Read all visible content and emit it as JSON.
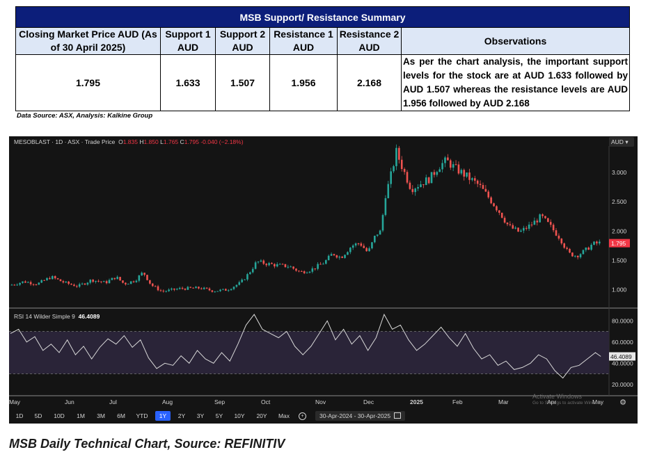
{
  "table": {
    "title": "MSB Support/  Resistance Summary",
    "headers": [
      "Closing Market Price AUD (As of 30 April 2025)",
      "Support 1 AUD",
      "Support 2 AUD",
      "Resistance 1 AUD",
      "Resistance 2 AUD",
      "Observations"
    ],
    "values": [
      "1.795",
      "1.633",
      "1.507",
      "1.956",
      "2.168"
    ],
    "observation": "As per the chart analysis, the important support levels for the stock are at AUD 1.633 followed by AUD 1.507 whereas the resistance levels are AUD 1.956 followed by AUD 2.168",
    "source": "Data Source: ASX, Analysis: Kalkine Group"
  },
  "chart_header": {
    "symbol": "MESOBLAST · 1D · ASX · Trade Price",
    "o_label": "O",
    "o_value": "1.835",
    "h_label": "H",
    "h_value": "1.850",
    "l_label": "L",
    "l_value": "1.765",
    "c_label": "C",
    "c_value": "1.795",
    "change": "-0.040 (−2.18%)",
    "currency_button": "AUD"
  },
  "rsi_header": {
    "label": "RSI 14 Wilder Simple 9",
    "value": "46.4089"
  },
  "watermark": {
    "line1": "Activate Windows",
    "line2": "Go to Settings to activate Windows."
  },
  "range_buttons": [
    "1D",
    "5D",
    "10D",
    "1M",
    "3M",
    "6M",
    "YTD",
    "1Y",
    "2Y",
    "3Y",
    "5Y",
    "10Y",
    "20Y",
    "Max"
  ],
  "active_range": "1Y",
  "date_range": "30-Apr-2024  -  30-Apr-2025",
  "caption": "MSB Daily Technical Chart, Source: REFINITIV",
  "colors": {
    "up": "#26a69a",
    "down": "#ef5350",
    "rsi_line": "#d8d8d8",
    "rsi_band": "#2a2438",
    "last_price_tag": "#f23645",
    "active_button": "#2962ff",
    "table_title_bg": "#0c1e7a",
    "table_header_bg": "#dde7f6"
  },
  "chart_data": [
    {
      "type": "line",
      "title": "MESOBLAST · 1D · ASX · Trade Price",
      "x": [
        "May",
        "Jun",
        "Jul",
        "Aug",
        "Sep",
        "Oct",
        "Nov",
        "Dec",
        "2025",
        "Feb",
        "Mar",
        "Apr",
        "May"
      ],
      "price_points": [
        {
          "d": 0,
          "p": 1.08
        },
        {
          "d": 10,
          "p": 1.14
        },
        {
          "d": 20,
          "p": 1.1
        },
        {
          "d": 30,
          "p": 1.22
        },
        {
          "d": 40,
          "p": 1.12
        },
        {
          "d": 50,
          "p": 1.06
        },
        {
          "d": 60,
          "p": 1.17
        },
        {
          "d": 70,
          "p": 1.12
        },
        {
          "d": 78,
          "p": 1.22
        },
        {
          "d": 84,
          "p": 1.1
        },
        {
          "d": 92,
          "p": 1.16
        },
        {
          "d": 98,
          "p": 1.3
        },
        {
          "d": 104,
          "p": 1.08
        },
        {
          "d": 112,
          "p": 0.97
        },
        {
          "d": 125,
          "p": 1.02
        },
        {
          "d": 140,
          "p": 1.03
        },
        {
          "d": 150,
          "p": 0.98
        },
        {
          "d": 160,
          "p": 1.0
        },
        {
          "d": 170,
          "p": 1.12
        },
        {
          "d": 176,
          "p": 1.28
        },
        {
          "d": 182,
          "p": 1.48
        },
        {
          "d": 188,
          "p": 1.45
        },
        {
          "d": 196,
          "p": 1.42
        },
        {
          "d": 206,
          "p": 1.4
        },
        {
          "d": 214,
          "p": 1.3
        },
        {
          "d": 222,
          "p": 1.34
        },
        {
          "d": 232,
          "p": 1.47
        },
        {
          "d": 238,
          "p": 1.62
        },
        {
          "d": 244,
          "p": 1.55
        },
        {
          "d": 252,
          "p": 1.75
        },
        {
          "d": 258,
          "p": 1.8
        },
        {
          "d": 264,
          "p": 1.63
        },
        {
          "d": 270,
          "p": 1.95
        },
        {
          "d": 274,
          "p": 2.0
        },
        {
          "d": 276,
          "p": 2.55
        },
        {
          "d": 280,
          "p": 2.85
        },
        {
          "d": 285,
          "p": 3.35
        },
        {
          "d": 290,
          "p": 3.05
        },
        {
          "d": 296,
          "p": 2.72
        },
        {
          "d": 302,
          "p": 2.8
        },
        {
          "d": 310,
          "p": 2.9
        },
        {
          "d": 316,
          "p": 3.1
        },
        {
          "d": 322,
          "p": 3.2
        },
        {
          "d": 328,
          "p": 3.08
        },
        {
          "d": 336,
          "p": 2.95
        },
        {
          "d": 346,
          "p": 2.78
        },
        {
          "d": 354,
          "p": 2.55
        },
        {
          "d": 362,
          "p": 2.3
        },
        {
          "d": 368,
          "p": 2.08
        },
        {
          "d": 376,
          "p": 1.98
        },
        {
          "d": 384,
          "p": 2.1
        },
        {
          "d": 392,
          "p": 2.25
        },
        {
          "d": 398,
          "p": 2.1
        },
        {
          "d": 406,
          "p": 1.88
        },
        {
          "d": 412,
          "p": 1.62
        },
        {
          "d": 418,
          "p": 1.58
        },
        {
          "d": 424,
          "p": 1.66
        },
        {
          "d": 430,
          "p": 1.78
        },
        {
          "d": 436,
          "p": 1.8
        }
      ],
      "last_price": 1.795,
      "y_ticks": [
        1.0,
        1.5,
        2.0,
        2.5,
        3.0
      ],
      "y_tick_labels": [
        "1.000",
        "1.500",
        "2.000",
        "2.500",
        "3.000"
      ],
      "ylim": [
        0.7,
        3.45
      ],
      "grid": false
    },
    {
      "type": "line",
      "title": "RSI 14 Wilder Simple 9",
      "rsi_points": [
        {
          "d": 0,
          "v": 68
        },
        {
          "d": 6,
          "v": 72
        },
        {
          "d": 12,
          "v": 60
        },
        {
          "d": 18,
          "v": 65
        },
        {
          "d": 24,
          "v": 52
        },
        {
          "d": 30,
          "v": 58
        },
        {
          "d": 36,
          "v": 50
        },
        {
          "d": 42,
          "v": 62
        },
        {
          "d": 48,
          "v": 48
        },
        {
          "d": 54,
          "v": 56
        },
        {
          "d": 60,
          "v": 44
        },
        {
          "d": 66,
          "v": 55
        },
        {
          "d": 72,
          "v": 63
        },
        {
          "d": 78,
          "v": 58
        },
        {
          "d": 84,
          "v": 66
        },
        {
          "d": 90,
          "v": 55
        },
        {
          "d": 96,
          "v": 62
        },
        {
          "d": 102,
          "v": 45
        },
        {
          "d": 108,
          "v": 35
        },
        {
          "d": 114,
          "v": 40
        },
        {
          "d": 120,
          "v": 38
        },
        {
          "d": 126,
          "v": 47
        },
        {
          "d": 132,
          "v": 40
        },
        {
          "d": 138,
          "v": 52
        },
        {
          "d": 144,
          "v": 44
        },
        {
          "d": 150,
          "v": 40
        },
        {
          "d": 156,
          "v": 50
        },
        {
          "d": 162,
          "v": 42
        },
        {
          "d": 168,
          "v": 58
        },
        {
          "d": 174,
          "v": 76
        },
        {
          "d": 180,
          "v": 86
        },
        {
          "d": 186,
          "v": 72
        },
        {
          "d": 192,
          "v": 68
        },
        {
          "d": 198,
          "v": 64
        },
        {
          "d": 204,
          "v": 70
        },
        {
          "d": 210,
          "v": 56
        },
        {
          "d": 216,
          "v": 48
        },
        {
          "d": 222,
          "v": 56
        },
        {
          "d": 228,
          "v": 68
        },
        {
          "d": 234,
          "v": 80
        },
        {
          "d": 240,
          "v": 62
        },
        {
          "d": 246,
          "v": 72
        },
        {
          "d": 252,
          "v": 58
        },
        {
          "d": 258,
          "v": 66
        },
        {
          "d": 264,
          "v": 52
        },
        {
          "d": 270,
          "v": 64
        },
        {
          "d": 276,
          "v": 86
        },
        {
          "d": 282,
          "v": 72
        },
        {
          "d": 288,
          "v": 76
        },
        {
          "d": 294,
          "v": 62
        },
        {
          "d": 300,
          "v": 52
        },
        {
          "d": 306,
          "v": 58
        },
        {
          "d": 312,
          "v": 66
        },
        {
          "d": 318,
          "v": 74
        },
        {
          "d": 324,
          "v": 64
        },
        {
          "d": 330,
          "v": 56
        },
        {
          "d": 336,
          "v": 68
        },
        {
          "d": 342,
          "v": 54
        },
        {
          "d": 348,
          "v": 44
        },
        {
          "d": 354,
          "v": 48
        },
        {
          "d": 360,
          "v": 38
        },
        {
          "d": 366,
          "v": 42
        },
        {
          "d": 372,
          "v": 34
        },
        {
          "d": 378,
          "v": 36
        },
        {
          "d": 384,
          "v": 40
        },
        {
          "d": 390,
          "v": 48
        },
        {
          "d": 396,
          "v": 44
        },
        {
          "d": 402,
          "v": 33
        },
        {
          "d": 408,
          "v": 26
        },
        {
          "d": 414,
          "v": 36
        },
        {
          "d": 420,
          "v": 38
        },
        {
          "d": 426,
          "v": 44
        },
        {
          "d": 432,
          "v": 50
        },
        {
          "d": 436,
          "v": 46.4
        }
      ],
      "y_ticks": [
        20,
        40,
        60,
        80
      ],
      "y_tick_labels": [
        "20.0000",
        "40.0000",
        "60.0000",
        "80.0000"
      ],
      "bands": [
        30,
        70
      ],
      "ylim": [
        10,
        90
      ],
      "last_value_label": "46.4089"
    }
  ]
}
